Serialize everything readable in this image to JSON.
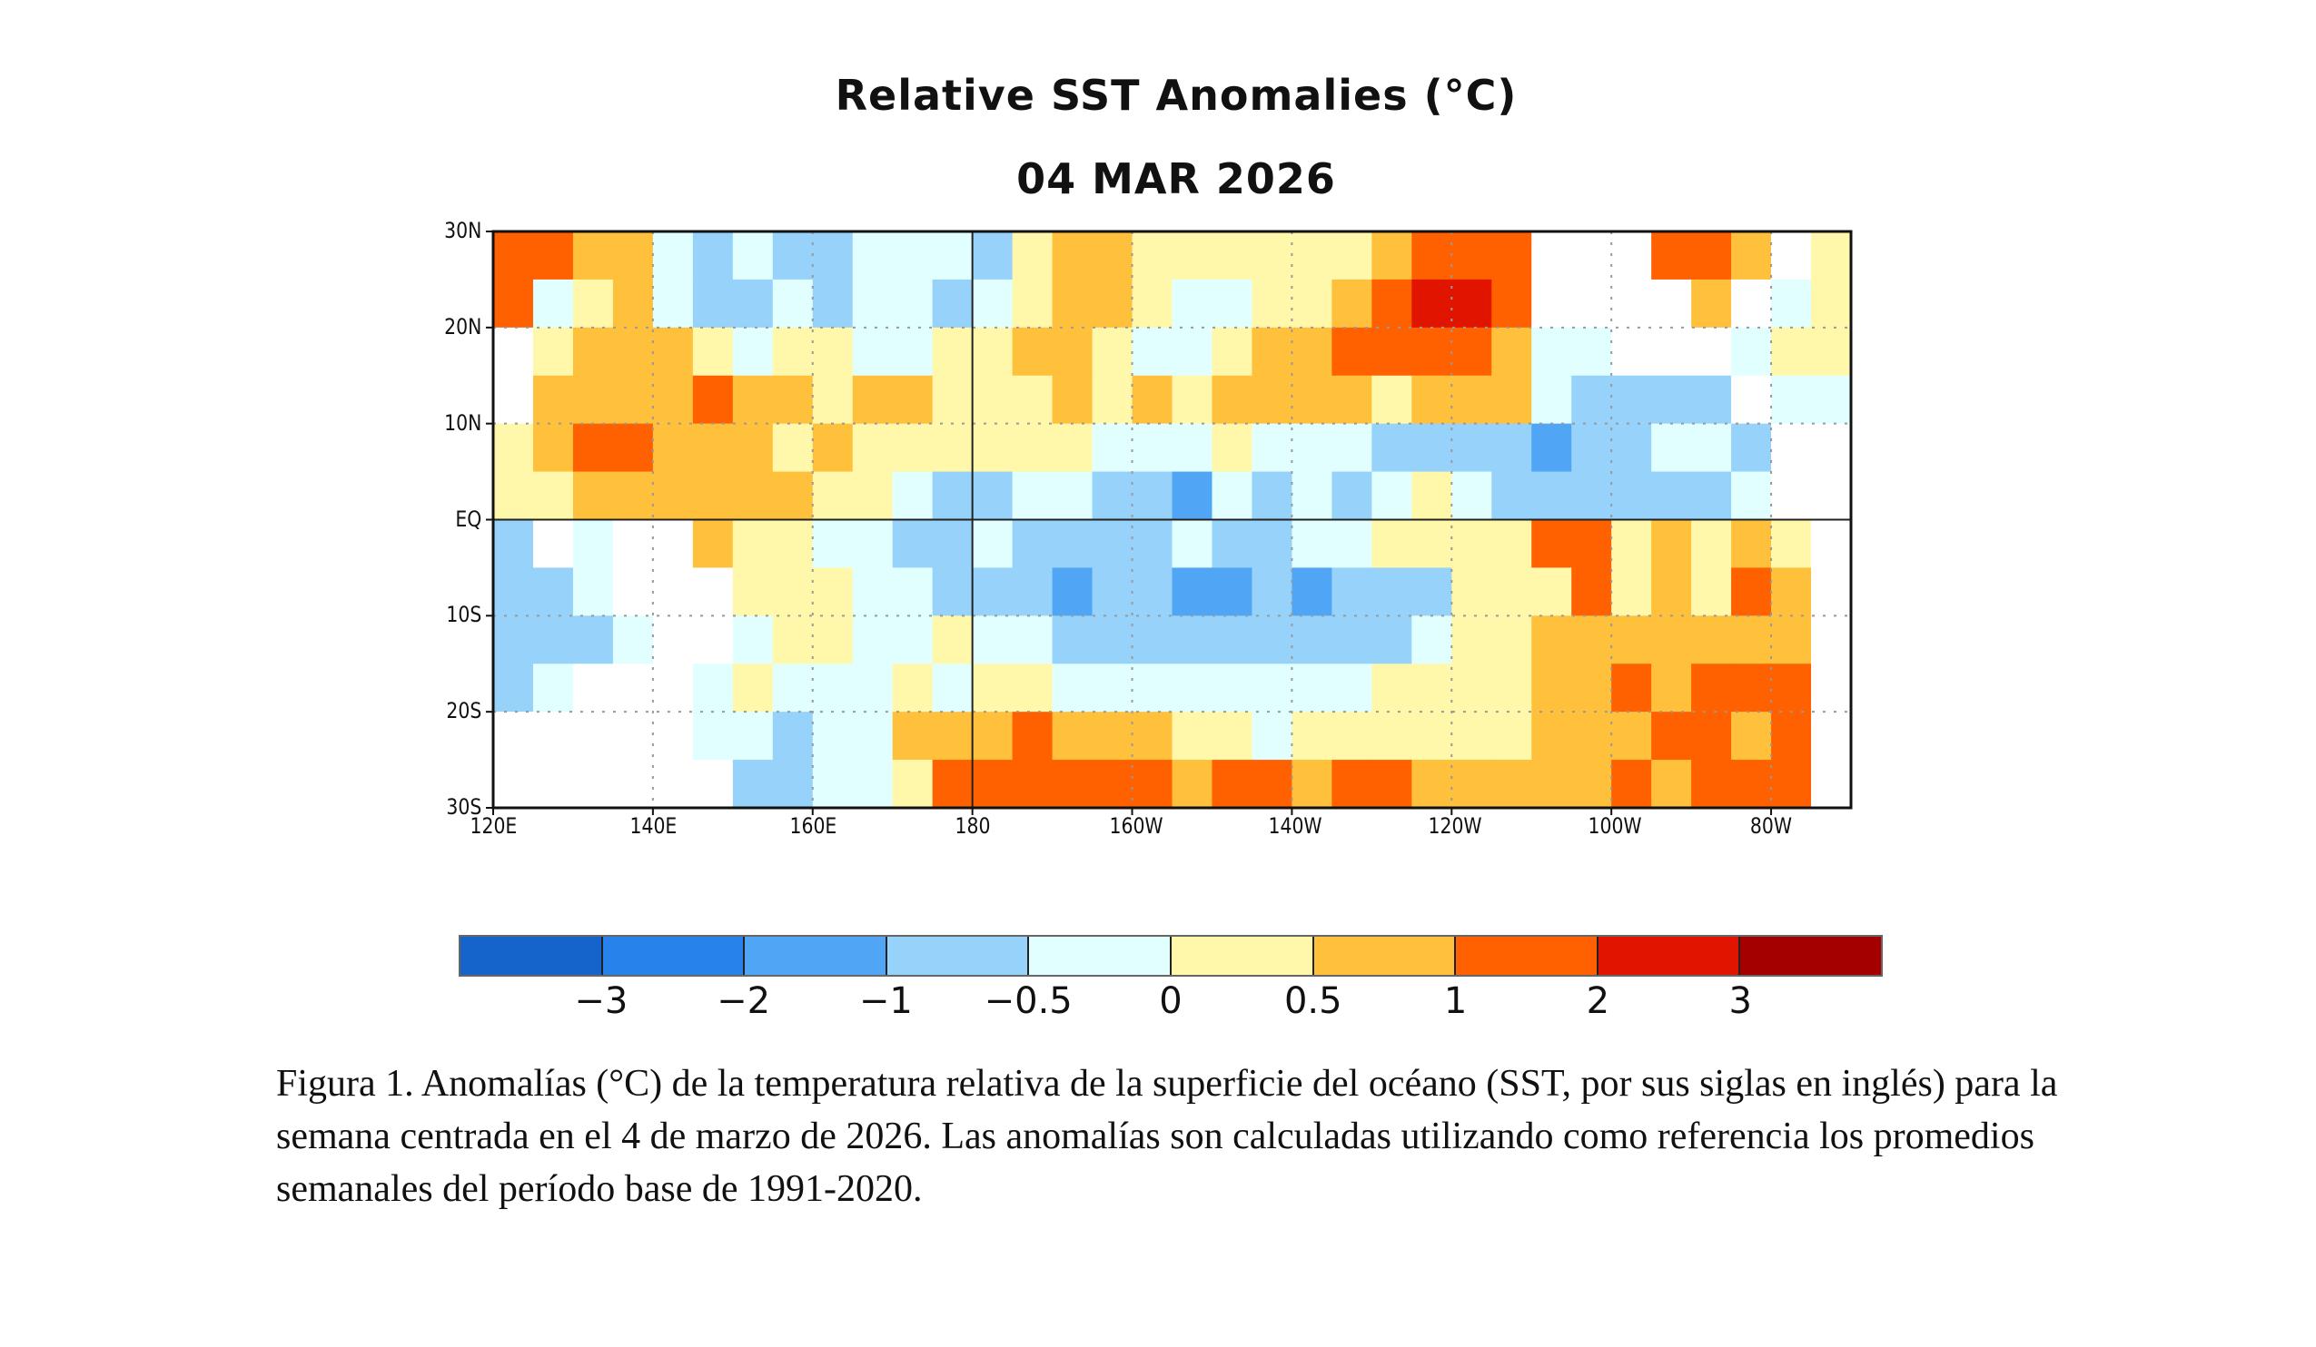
{
  "figure": {
    "title": "Relative SST Anomalies (°C)",
    "date": "04 MAR 2026",
    "caption": "Figura 1. Anomalías (°C) de la temperatura relativa de la superficie del océano (SST, por sus siglas en inglés) para la semana centrada en el 4 de marzo de 2026. Las anomalías son calculadas utilizando como referencia los promedios semanales del período base de 1991-2020."
  },
  "map": {
    "lon_labels": [
      "120E",
      "140E",
      "160E",
      "180",
      "160W",
      "140W",
      "120W",
      "100W",
      "80W"
    ],
    "lat_labels": [
      "30N",
      "20N",
      "10N",
      "EQ",
      "10S",
      "20S",
      "30S"
    ],
    "lon_range": [
      "120E",
      "70W"
    ],
    "lat_range": [
      "30N",
      "30S"
    ],
    "anomaly_grid_legend": {
      "B": -1.5,
      "b": -0.75,
      "c": -0.25,
      "y": 0.25,
      "o": 0.75,
      "O": 1.5,
      "R": 2.5,
      "L": null
    },
    "anomaly_grid_5deg": [
      "OOoocbcbbcccbyooyyyyyyoOOOLLLOOoLy",
      "OcyocbbcbccbcyooyccyyoORROLLLLoLcy",
      "LyoooycyyccyyooyccyooOOOOoccLLLcyy",
      "LooooOooyooyyyoyoyooooyooocbbbbLcc",
      "yoOOoooyoyyyyyycccycccbbbbBbbccbLL",
      "yyooooooyycbbccbbBcbcbcycbbbbbbcLL",
      "bLcLLoyyccbbcbbbbcbbccyyyyOOyoyoyL",
      "bbcLLLyyyccbbbBbbBBbBbbbyyyOyoyOoL",
      "bbbcLLcyyccyccbbbbbbbbbcyyoooooooL",
      "bcLLLcyccc ycyyccccccccyyyyooOoOOOL",
      "LLLLLccbccoooOoooyycyyyyyyoooOOoOL",
      "LLLLLLbbccyOOOOOOoOOoOOoooooOoOOOL"
    ]
  },
  "colorbar": {
    "colors": [
      "#1464cc",
      "#2882ec",
      "#50a5f5",
      "#96d2fa",
      "#e1ffff",
      "#fff8aa",
      "#ffc03c",
      "#ff6000",
      "#e11400",
      "#a50000"
    ],
    "labels": [
      "−3",
      "−2",
      "−1",
      "−0.5",
      "0",
      "0.5",
      "1",
      "2",
      "3"
    ]
  }
}
